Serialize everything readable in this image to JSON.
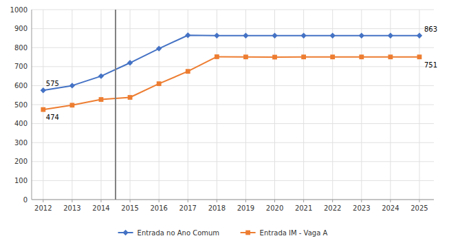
{
  "chart_data": {
    "type": "line",
    "x": [
      2012,
      2013,
      2014,
      2015,
      2016,
      2017,
      2018,
      2019,
      2020,
      2021,
      2022,
      2023,
      2024,
      2025
    ],
    "series": [
      {
        "name": "Entrada no Ano Comum",
        "color": "#4472C4",
        "marker": "diamond",
        "values": [
          575,
          600,
          650,
          720,
          795,
          865,
          863,
          863,
          863,
          863,
          863,
          863,
          863,
          863
        ]
      },
      {
        "name": "Entrada IM - Vaga A",
        "color": "#ED7D31",
        "marker": "square",
        "values": [
          474,
          497,
          527,
          538,
          610,
          675,
          752,
          751,
          750,
          751,
          751,
          751,
          751,
          751
        ]
      }
    ],
    "xlim": [
      2011.6,
      2025.5
    ],
    "xticks": [
      2012,
      2013,
      2014,
      2015,
      2016,
      2017,
      2018,
      2019,
      2020,
      2021,
      2022,
      2023,
      2024,
      2025
    ],
    "ylim": [
      0,
      1000
    ],
    "yticks": [
      0,
      100,
      200,
      300,
      400,
      500,
      600,
      700,
      800,
      900,
      1000
    ],
    "reference_lines": [
      {
        "x": 2014.5,
        "color": "#7F7F7F"
      }
    ],
    "annotations": [
      {
        "text": "575",
        "x": 2012,
        "y": 575
      },
      {
        "text": "474",
        "x": 2012,
        "y": 474
      },
      {
        "text": "863",
        "x": 2025,
        "y": 863
      },
      {
        "text": "751",
        "x": 2025,
        "y": 751
      }
    ],
    "grid": true,
    "legend": "bottom"
  }
}
